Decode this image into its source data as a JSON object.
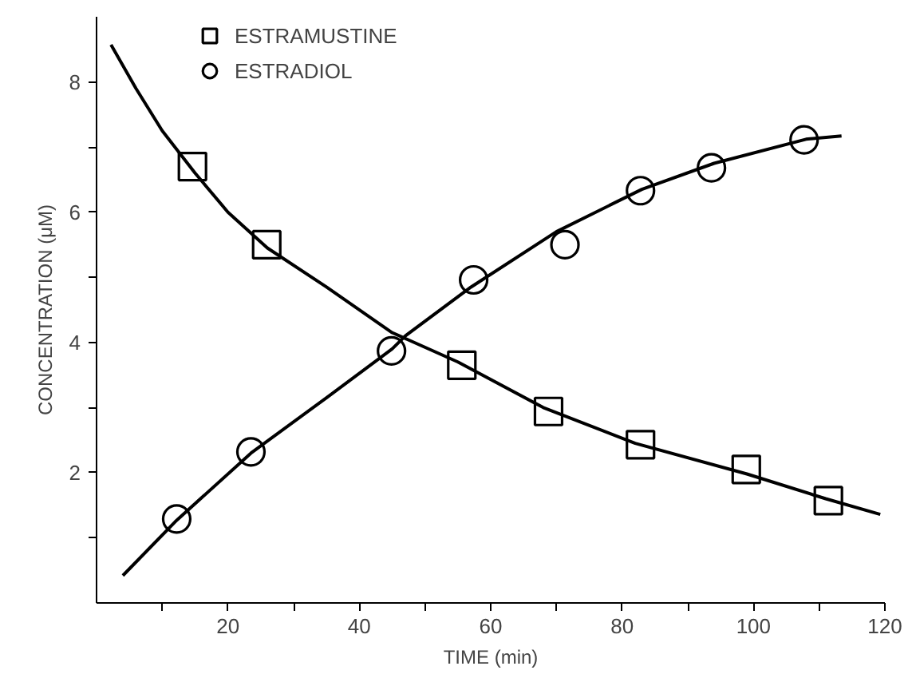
{
  "chart_data": {
    "type": "scatter",
    "xlabel": "TIME (min)",
    "ylabel": "CONCENTRATION (μM)",
    "xlim": [
      0,
      120
    ],
    "ylim": [
      0,
      9
    ],
    "xticks": [
      {
        "value": 10,
        "label": null
      },
      20,
      {
        "value": 30,
        "label": null
      },
      40,
      {
        "value": 50,
        "label": null
      },
      60,
      {
        "value": 70,
        "label": null
      },
      80,
      {
        "value": 90,
        "label": null
      },
      100,
      {
        "value": 110,
        "label": null
      },
      120
    ],
    "yticks": [
      {
        "value": 1,
        "label": null
      },
      2,
      {
        "value": 3,
        "label": null
      },
      4,
      {
        "value": 5,
        "label": null
      },
      6,
      {
        "value": 7,
        "label": null
      },
      8
    ],
    "grid": false,
    "legend": "top",
    "series": [
      {
        "name": "ESTRAMUSTINE",
        "marker": "square",
        "color": "#000000",
        "x": [
          14.6,
          25.9,
          55.6,
          68.8,
          82.8,
          98.9,
          111.4
        ],
        "values": [
          6.7,
          5.5,
          3.65,
          2.94,
          2.43,
          2.05,
          1.57
        ]
      },
      {
        "name": "ESTRADIOL",
        "marker": "circle",
        "color": "#000000",
        "x": [
          12.2,
          23.5,
          44.9,
          57.4,
          71.3,
          82.8,
          93.6,
          107.7
        ],
        "values": [
          1.29,
          2.32,
          3.87,
          4.96,
          5.5,
          6.33,
          6.68,
          7.11
        ]
      },
      {
        "type": "line",
        "marker": "none",
        "line_style": "solid",
        "color": "#000000",
        "x": [
          2.2,
          6,
          10,
          15,
          20,
          26,
          35,
          45,
          55,
          68,
          82,
          99,
          111,
          119.3
        ],
        "values": [
          8.57,
          7.9,
          7.25,
          6.6,
          6.0,
          5.45,
          4.85,
          4.15,
          3.7,
          3.0,
          2.45,
          1.98,
          1.6,
          1.36
        ]
      },
      {
        "type": "line",
        "marker": "none",
        "line_style": "solid",
        "color": "#000000",
        "x": [
          4,
          12,
          23.5,
          35,
          45,
          47,
          57,
          70,
          83,
          94,
          108,
          113.4
        ],
        "values": [
          0.42,
          1.25,
          2.3,
          3.15,
          3.9,
          4.1,
          4.85,
          5.7,
          6.35,
          6.75,
          7.12,
          7.17
        ]
      }
    ]
  }
}
